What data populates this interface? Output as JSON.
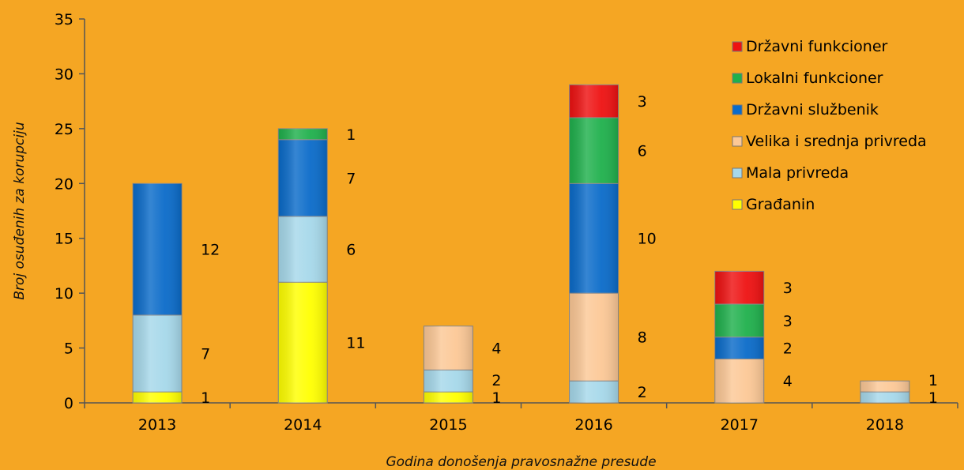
{
  "chart_data": {
    "type": "bar",
    "stacked": true,
    "title": "",
    "xlabel": "Godina donošenja pravosnažne presude",
    "ylabel": "Broj osuđenih za korupciju",
    "ylim": [
      0,
      35
    ],
    "yticks": [
      0,
      5,
      10,
      15,
      20,
      25,
      30,
      35
    ],
    "grid": false,
    "legend_position": "top-right",
    "categories": [
      "2013",
      "2014",
      "2015",
      "2016",
      "2017",
      "2018"
    ],
    "series": [
      {
        "name": "Građanin",
        "color": "#FFFF00",
        "values": [
          1,
          11,
          1,
          0,
          0,
          0
        ]
      },
      {
        "name": "Mala privreda",
        "color": "#A6D8EA",
        "values": [
          7,
          6,
          2,
          2,
          0,
          1
        ]
      },
      {
        "name": "Velika i srednja privreda",
        "color": "#FCC896",
        "values": [
          0,
          0,
          4,
          8,
          4,
          1
        ]
      },
      {
        "name": "Državni službenik",
        "color": "#0A6BC9",
        "values": [
          12,
          7,
          0,
          10,
          2,
          0
        ]
      },
      {
        "name": "Lokalni funkcioner",
        "color": "#1FB04C",
        "values": [
          0,
          1,
          0,
          6,
          3,
          0
        ]
      },
      {
        "name": "Državni funkcioner",
        "color": "#EE1111",
        "values": [
          0,
          0,
          0,
          3,
          3,
          0
        ]
      }
    ],
    "legend_order": [
      "Državni funkcioner",
      "Lokalni funkcioner",
      "Državni službenik",
      "Velika i srednja privreda",
      "Mala privreda",
      "Građanin"
    ]
  }
}
